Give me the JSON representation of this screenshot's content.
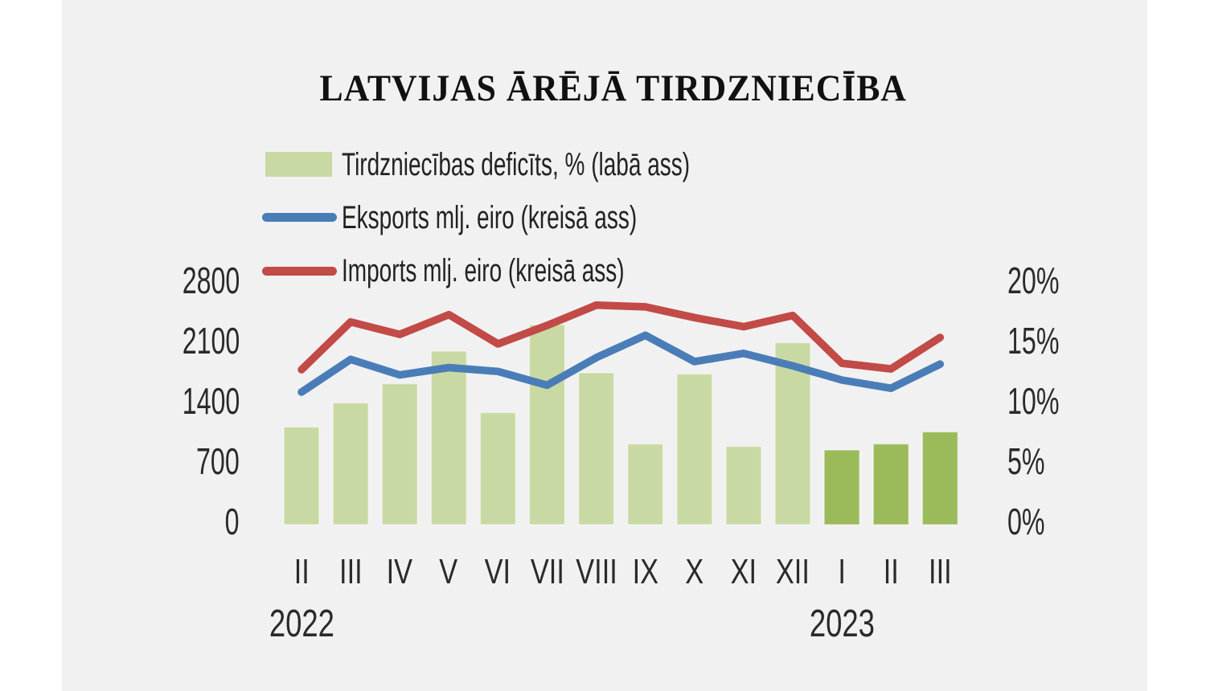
{
  "title": "LATVIJAS ĀRĒJĀ TIRDZNIECĪBA",
  "colors": {
    "background_panel": "#f1f1f2",
    "page": "#ffffff",
    "deficit_bar_2022": "#c9d9a3",
    "deficit_bar_2023": "#9bbb5b",
    "exports_line": "#4a7db8",
    "imports_line": "#c24a47",
    "text": "#1a1a1a"
  },
  "chart_data": {
    "type": "combo",
    "title": "LATVIJAS ĀRĒJĀ TIRDZNIECĪBA",
    "categories": [
      "II",
      "III",
      "IV",
      "V",
      "VI",
      "VII",
      "VIII",
      "IX",
      "X",
      "XI",
      "XII",
      "I",
      "II",
      "III"
    ],
    "category_years": [
      "2022",
      "2022",
      "2022",
      "2022",
      "2022",
      "2022",
      "2022",
      "2022",
      "2022",
      "2022",
      "2022",
      "2023",
      "2023",
      "2023"
    ],
    "year_labels": [
      "2022",
      "2023"
    ],
    "series": [
      {
        "name": "Tirdzniecības deficīts, % (labā ass)",
        "type": "bar",
        "axis": "right",
        "unit": "%",
        "color_2022": "#c9d9a3",
        "color_2023": "#9bbb5b",
        "values": [
          8.1,
          10.1,
          11.7,
          14.4,
          9.3,
          16.6,
          12.6,
          6.7,
          12.5,
          6.5,
          15.1,
          6.2,
          6.7,
          7.7
        ]
      },
      {
        "name": "Eksports mlj. eiro (kreisā ass)",
        "type": "line",
        "axis": "left",
        "unit": "mlj. eiro",
        "color": "#4a7db8",
        "values": [
          1540,
          1920,
          1740,
          1825,
          1780,
          1620,
          1940,
          2200,
          1895,
          1990,
          1845,
          1680,
          1585,
          1865
        ]
      },
      {
        "name": "Imports mlj. eiro (kreisā ass)",
        "type": "line",
        "axis": "left",
        "unit": "mlj. eiro",
        "color": "#c24a47",
        "values": [
          1800,
          2355,
          2210,
          2440,
          2100,
          2315,
          2550,
          2530,
          2405,
          2300,
          2430,
          1875,
          1810,
          2175
        ]
      }
    ],
    "left_axis": {
      "tick_labels": [
        "0",
        "700",
        "1400",
        "2100",
        "2800"
      ],
      "tick_values": [
        0,
        700,
        1400,
        2100,
        2800
      ],
      "min": 0,
      "max": 2800
    },
    "right_axis": {
      "tick_labels": [
        "0%",
        "5%",
        "10%",
        "15%",
        "20%"
      ],
      "tick_values": [
        0,
        5,
        10,
        15,
        20
      ],
      "min": 0,
      "max": 20
    },
    "legend_position": "top-left",
    "grid": "off"
  }
}
